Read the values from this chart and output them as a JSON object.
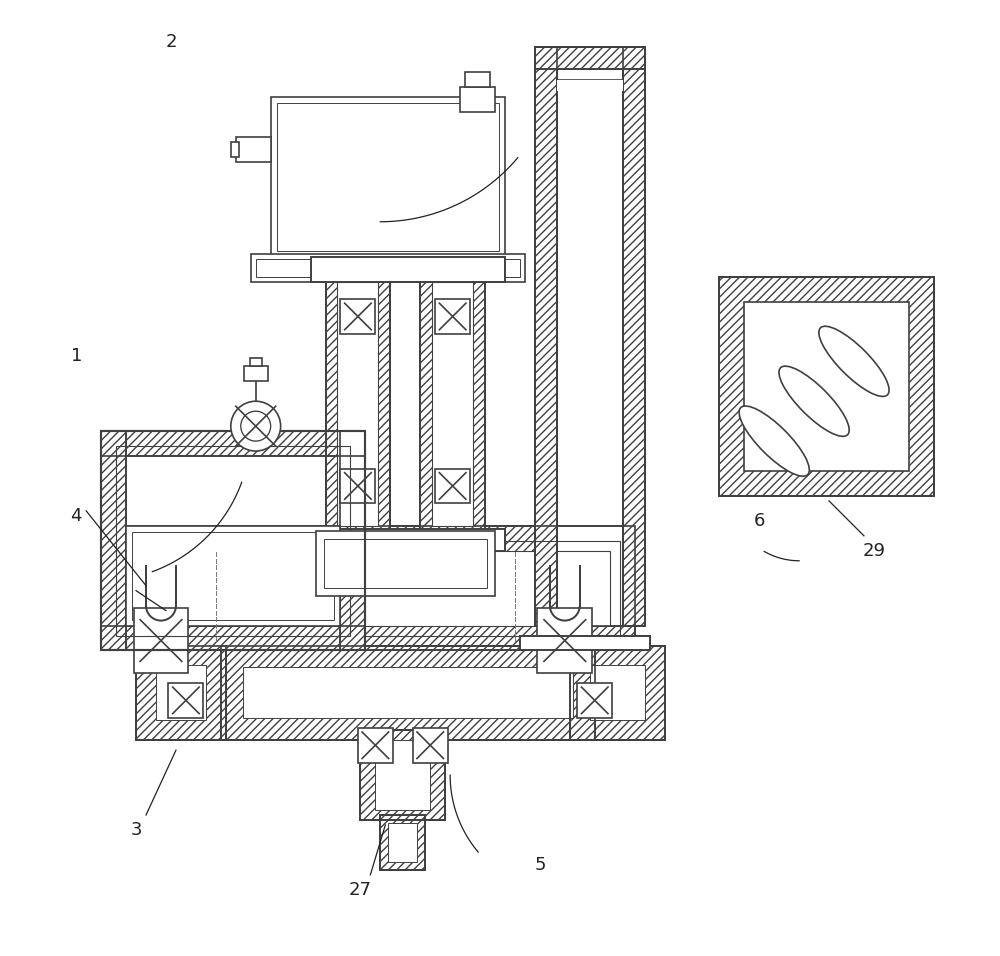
{
  "bg_color": "#ffffff",
  "lc": "#404040",
  "lw": 1.2,
  "hatch": "////",
  "fs": 13
}
